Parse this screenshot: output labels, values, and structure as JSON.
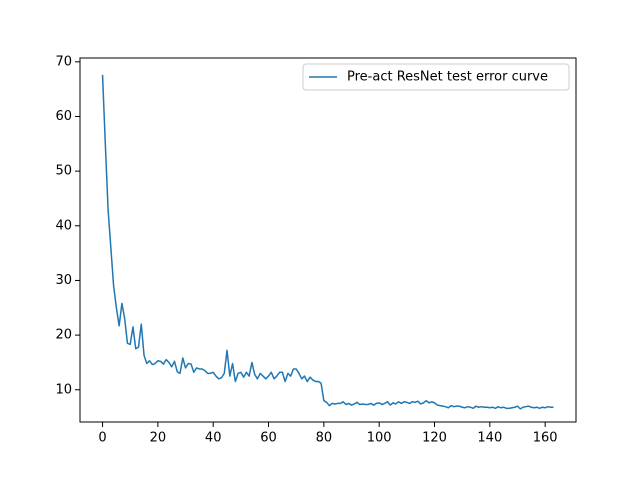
{
  "chart_data": {
    "type": "line",
    "x": [
      0,
      1,
      2,
      3,
      4,
      5,
      6,
      7,
      8,
      9,
      10,
      11,
      12,
      13,
      14,
      15,
      16,
      17,
      18,
      19,
      20,
      21,
      22,
      23,
      24,
      25,
      26,
      27,
      28,
      29,
      30,
      31,
      32,
      33,
      34,
      35,
      36,
      37,
      38,
      39,
      40,
      41,
      42,
      43,
      44,
      45,
      46,
      47,
      48,
      49,
      50,
      51,
      52,
      53,
      54,
      55,
      56,
      57,
      58,
      59,
      60,
      61,
      62,
      63,
      64,
      65,
      66,
      67,
      68,
      69,
      70,
      71,
      72,
      73,
      74,
      75,
      76,
      77,
      78,
      79,
      80,
      81,
      82,
      83,
      84,
      85,
      86,
      87,
      88,
      89,
      90,
      91,
      92,
      93,
      94,
      95,
      96,
      97,
      98,
      99,
      100,
      101,
      102,
      103,
      104,
      105,
      106,
      107,
      108,
      109,
      110,
      111,
      112,
      113,
      114,
      115,
      116,
      117,
      118,
      119,
      120,
      121,
      122,
      123,
      124,
      125,
      126,
      127,
      128,
      129,
      130,
      131,
      132,
      133,
      134,
      135,
      136,
      137,
      138,
      139,
      140,
      141,
      142,
      143,
      144,
      145,
      146,
      147,
      148,
      149,
      150,
      151,
      152,
      153,
      154,
      155,
      156,
      157,
      158,
      159,
      160,
      161,
      162,
      163
    ],
    "series": [
      {
        "name": "Pre-act ResNet test error curve",
        "color": "#1f77b4",
        "values": [
          67.6,
          55,
          43,
          36,
          29,
          25,
          21.7,
          25.8,
          23,
          18.5,
          18.3,
          21.5,
          17.5,
          17.8,
          22,
          16.3,
          14.8,
          15.3,
          14.6,
          14.8,
          15.3,
          15.2,
          14.7,
          15.5,
          15,
          14.2,
          15.2,
          13.3,
          13,
          15.8,
          14,
          14.8,
          14.7,
          13.2,
          14,
          13.8,
          13.8,
          13.5,
          13,
          13,
          13.2,
          12.5,
          12,
          12.2,
          13,
          17.2,
          12.5,
          14.8,
          11.5,
          13,
          13.2,
          12.3,
          13.2,
          12.5,
          15,
          12.8,
          12,
          13,
          12.5,
          12,
          12.5,
          13.2,
          12,
          12.5,
          13.2,
          13.2,
          11.5,
          13,
          12.5,
          13.8,
          13.8,
          13,
          12,
          12.5,
          11.5,
          12.3,
          11.8,
          11.5,
          11.5,
          11.2,
          8,
          7.7,
          7.1,
          7.5,
          7.4,
          7.5,
          7.5,
          7.8,
          7.3,
          7.5,
          7.2,
          7.4,
          7.7,
          7.3,
          7.4,
          7.3,
          7.3,
          7.5,
          7.2,
          7.5,
          7.6,
          7.3,
          7.5,
          7.8,
          7.2,
          7.6,
          7.4,
          7.8,
          7.5,
          7.8,
          7.7,
          7.5,
          7.8,
          7.7,
          7.9,
          7.4,
          7.6,
          8,
          7.6,
          7.8,
          7.6,
          7.2,
          7.1,
          7,
          6.9,
          6.7,
          7.1,
          6.9,
          7,
          7,
          6.8,
          6.7,
          6.9,
          6.8,
          6.6,
          7,
          6.8,
          6.9,
          6.8,
          6.8,
          6.7,
          6.8,
          6.6,
          6.9,
          6.7,
          6.8,
          6.6,
          6.6,
          6.7,
          6.8,
          7,
          6.5,
          6.8,
          6.9,
          7,
          6.8,
          6.7,
          6.8,
          6.6,
          6.8,
          6.7,
          6.9,
          6.8,
          6.8
        ]
      }
    ],
    "xlim": [
      -8.15,
      171.15
    ],
    "ylim": [
      4.1,
      70.7
    ],
    "xticks": [
      0,
      20,
      40,
      60,
      80,
      100,
      120,
      140,
      160
    ],
    "yticks": [
      10,
      20,
      30,
      40,
      50,
      60,
      70
    ],
    "legend": "upper right"
  }
}
